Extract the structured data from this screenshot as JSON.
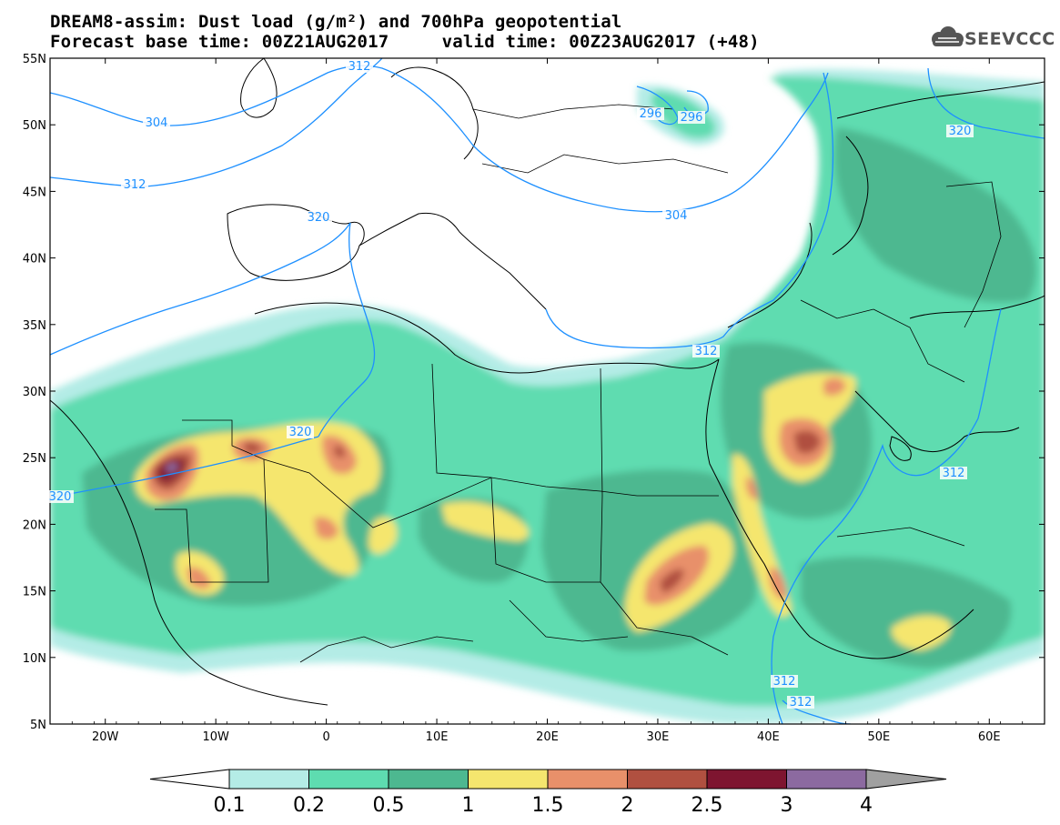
{
  "header": {
    "title_line1": "DREAM8-assim: Dust load (g/m²) and 700hPa geopotential",
    "title_line2": "Forecast base time: 00Z21AUG2017     valid time: 00Z23AUG2017 (+48)",
    "logo_text": "SEEVCCC"
  },
  "map": {
    "lon_range": [
      -25,
      65
    ],
    "lat_range": [
      5,
      55
    ],
    "lon_ticks": [
      "20W",
      "10W",
      "0",
      "10E",
      "20E",
      "30E",
      "40E",
      "50E",
      "60E"
    ],
    "lat_ticks": [
      "55N",
      "50N",
      "45N",
      "40N",
      "35N",
      "30N",
      "25N",
      "20N",
      "15N",
      "10N",
      "5N"
    ],
    "contour_labels": [
      "312",
      "304",
      "312",
      "320",
      "296",
      "296",
      "304",
      "320",
      "312",
      "320",
      "320",
      "312",
      "312",
      "312"
    ],
    "contour_color": "#1e90ff"
  },
  "legend": {
    "ticks": [
      "0.1",
      "0.2",
      "0.5",
      "1",
      "1.5",
      "2",
      "2.5",
      "3",
      "4"
    ],
    "colors": [
      "#ffffff",
      "#b4ece6",
      "#5edcb0",
      "#4db890",
      "#f5e66e",
      "#e8906a",
      "#b05040",
      "#7e1530",
      "#8c6aa0",
      "#a0a0a0"
    ]
  }
}
